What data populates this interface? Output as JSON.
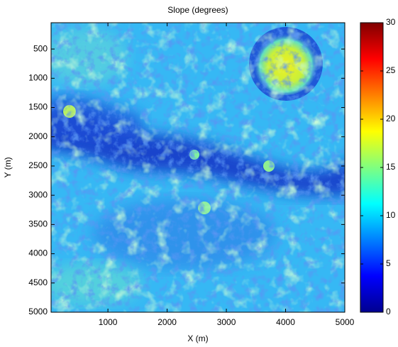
{
  "chart_data": {
    "type": "heatmap",
    "title": "Slope (degrees)",
    "x_label": "X (m)",
    "y_label": "Y (m)",
    "xlim": [
      40,
      5000
    ],
    "xticks": [
      1000,
      2000,
      3000,
      4000,
      5000
    ],
    "ylim": [
      50,
      5000
    ],
    "yticks": [
      500,
      1000,
      1500,
      2000,
      2500,
      3000,
      3500,
      4000,
      4500,
      5000
    ],
    "y_reversed": true,
    "colormap": "jet",
    "clim": [
      0,
      30
    ],
    "cticks": [
      0,
      5,
      10,
      15,
      20,
      25,
      30
    ]
  }
}
